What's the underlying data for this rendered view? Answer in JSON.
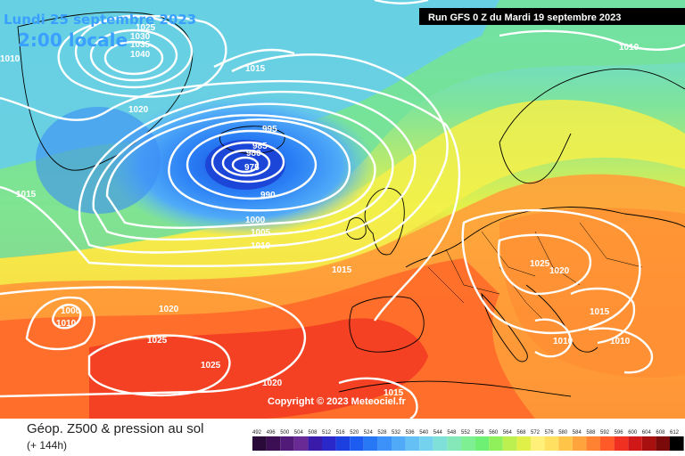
{
  "header": {
    "date": "Lundi 25 septembre 2023",
    "time": "2:00 locale",
    "run": "Run GFS 0 Z du Mardi 19 septembre 2023"
  },
  "copyright": "Copyright © 2023 Meteociel.fr",
  "footer": {
    "title": "Géop. Z500 & pression au sol",
    "subtitle": "(+ 144h)"
  },
  "legend": {
    "ticks": [
      "492",
      "496",
      "500",
      "504",
      "508",
      "512",
      "516",
      "520",
      "524",
      "528",
      "532",
      "536",
      "540",
      "544",
      "548",
      "552",
      "556",
      "560",
      "564",
      "568",
      "572",
      "576",
      "580",
      "584",
      "588",
      "592",
      "596",
      "600",
      "604",
      "608",
      "612"
    ],
    "colors": [
      "#2a0a38",
      "#3c0f55",
      "#521a78",
      "#6a2a96",
      "#3a1aa8",
      "#2a28c8",
      "#1c40e0",
      "#1c5cf0",
      "#2878f5",
      "#3c92f8",
      "#50aaf8",
      "#64c0f5",
      "#74d2ee",
      "#7ee0d8",
      "#84e8b8",
      "#7eef92",
      "#6ef074",
      "#90f05c",
      "#bcf050",
      "#e0f048",
      "#fff07a",
      "#ffe060",
      "#ffc448",
      "#ffa43c",
      "#ff8232",
      "#ff5a28",
      "#f03020",
      "#d01818",
      "#a81010",
      "#7a0a0a",
      "#000000"
    ]
  },
  "isobar_labels": [
    {
      "text": "1025",
      "id": "l1025-a"
    },
    {
      "text": "1030",
      "id": "l1030"
    },
    {
      "text": "1035",
      "id": "l1035"
    },
    {
      "text": "1040",
      "id": "l1040"
    },
    {
      "text": "1010",
      "id": "l1010-a"
    },
    {
      "text": "1015",
      "id": "l1015-a"
    },
    {
      "text": "1020",
      "id": "l1020-a"
    },
    {
      "text": "1015",
      "id": "l1015-b"
    },
    {
      "text": "995",
      "id": "l995"
    },
    {
      "text": "985",
      "id": "l985"
    },
    {
      "text": "980",
      "id": "l980"
    },
    {
      "text": "975",
      "id": "l975"
    },
    {
      "text": "990",
      "id": "l990"
    },
    {
      "text": "1000",
      "id": "l1000-a"
    },
    {
      "text": "1005",
      "id": "l1005"
    },
    {
      "text": "1010",
      "id": "l1010-b"
    },
    {
      "text": "1015",
      "id": "l1015-c"
    },
    {
      "text": "1020",
      "id": "l1020-b"
    },
    {
      "text": "1000",
      "id": "l1000-b"
    },
    {
      "text": "1010",
      "id": "l1010-c"
    },
    {
      "text": "1025",
      "id": "l1025-b"
    },
    {
      "text": "1025",
      "id": "l1025-c"
    },
    {
      "text": "1020",
      "id": "l1020-c"
    },
    {
      "text": "1015",
      "id": "l1015-d"
    },
    {
      "text": "1025",
      "id": "l1025-d"
    },
    {
      "text": "1020",
      "id": "l1020-d"
    },
    {
      "text": "1015",
      "id": "l1015-e"
    },
    {
      "text": "1010",
      "id": "l1010-d"
    },
    {
      "text": "1010",
      "id": "l1010-e"
    },
    {
      "text": "1010",
      "id": "l1010-f"
    }
  ]
}
